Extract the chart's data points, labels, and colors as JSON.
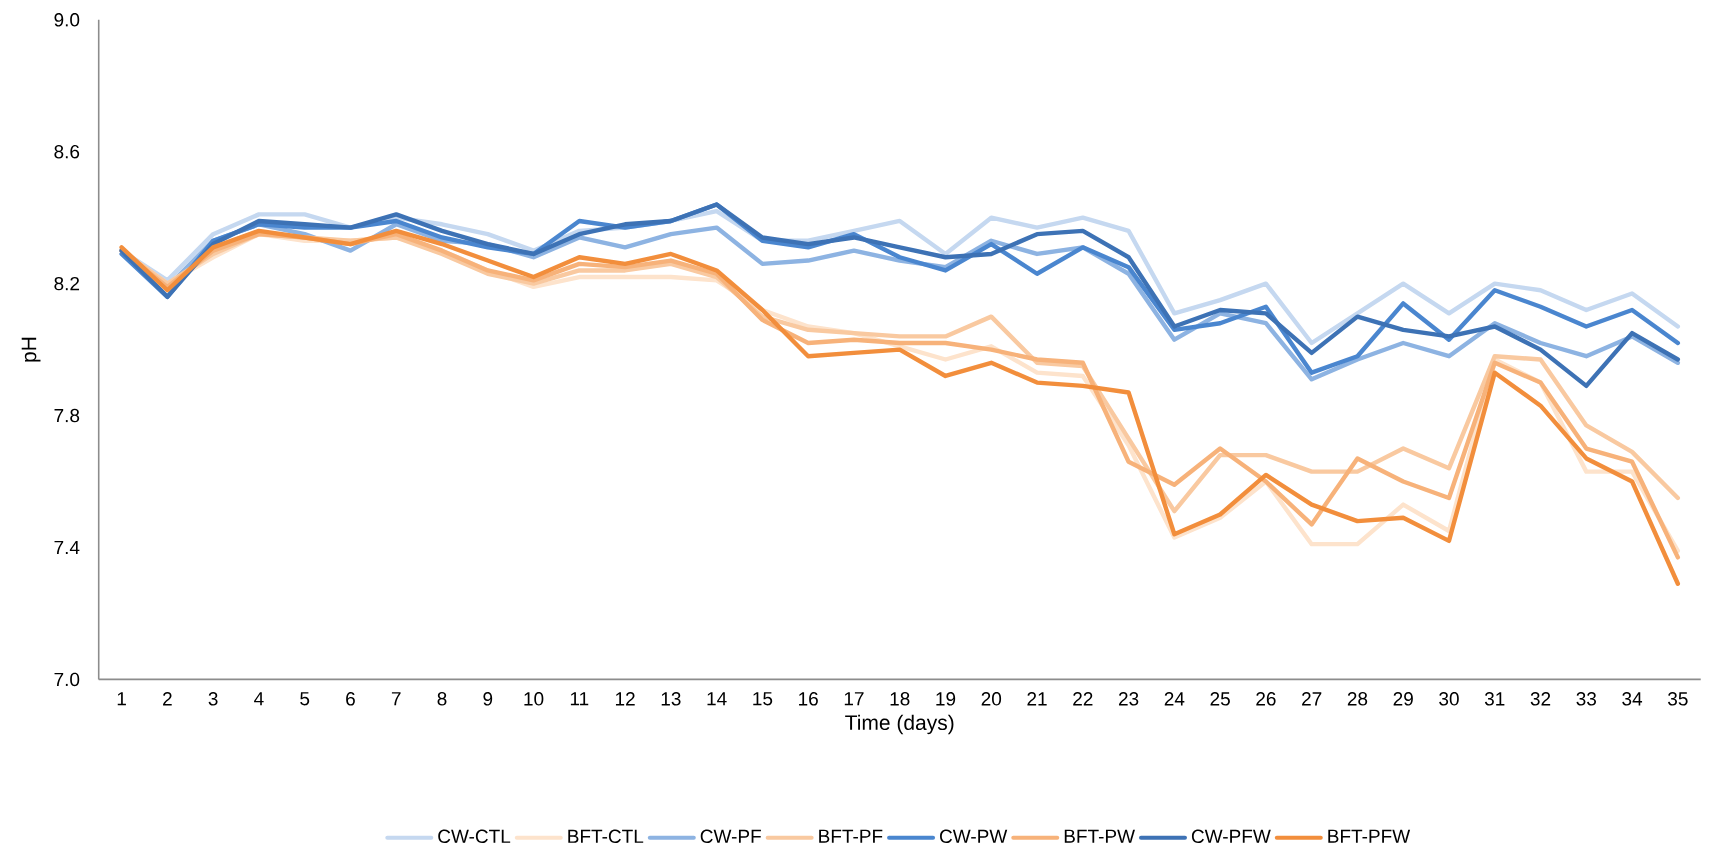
{
  "chart_data": {
    "type": "line",
    "xlabel": "Time (days)",
    "ylabel": "pH",
    "categories": [
      "1",
      "2",
      "3",
      "4",
      "5",
      "6",
      "7",
      "8",
      "9",
      "10",
      "11",
      "12",
      "13",
      "14",
      "15",
      "16",
      "17",
      "18",
      "19",
      "20",
      "21",
      "22",
      "23",
      "24",
      "25",
      "26",
      "27",
      "28",
      "29",
      "30",
      "31",
      "32",
      "33",
      "34",
      "35"
    ],
    "ylim": [
      7.0,
      9.0
    ],
    "yticks": [
      {
        "value": 7.0,
        "label": "7.0"
      },
      7.4,
      7.8,
      8.2,
      8.6,
      {
        "value": 9.0,
        "label": "9.0"
      }
    ],
    "legend": "bottom",
    "series": [
      {
        "name": "CW-CTL",
        "color": "#c5d8f0",
        "values": [
          8.3,
          8.21,
          8.35,
          8.41,
          8.41,
          8.37,
          8.4,
          8.38,
          8.35,
          8.3,
          8.36,
          8.37,
          8.39,
          8.42,
          8.33,
          8.33,
          8.36,
          8.39,
          8.29,
          8.4,
          8.37,
          8.4,
          8.36,
          8.11,
          8.15,
          8.2,
          8.02,
          8.11,
          8.2,
          8.11,
          8.2,
          8.18,
          8.12,
          8.17,
          8.07
        ]
      },
      {
        "name": "BFT-CTL",
        "color": "#fde3cc",
        "values": [
          8.3,
          8.2,
          8.28,
          8.35,
          8.33,
          8.33,
          8.34,
          8.3,
          8.24,
          8.19,
          8.22,
          8.22,
          8.22,
          8.21,
          8.12,
          8.07,
          8.05,
          8.01,
          7.97,
          8.01,
          7.93,
          7.92,
          7.71,
          7.43,
          7.49,
          7.6,
          7.41,
          7.41,
          7.53,
          7.45,
          7.97,
          7.9,
          7.63,
          7.63,
          7.39
        ]
      },
      {
        "name": "CW-PF",
        "color": "#8db3e2",
        "values": [
          8.3,
          8.19,
          8.33,
          8.38,
          8.35,
          8.3,
          8.38,
          8.33,
          8.32,
          8.28,
          8.34,
          8.31,
          8.35,
          8.37,
          8.26,
          8.27,
          8.3,
          8.27,
          8.25,
          8.33,
          8.29,
          8.31,
          8.23,
          8.03,
          8.11,
          8.08,
          7.91,
          7.97,
          8.02,
          7.98,
          8.08,
          8.02,
          7.98,
          8.04,
          7.96
        ]
      },
      {
        "name": "BFT-PF",
        "color": "#f9c9a0",
        "values": [
          8.3,
          8.2,
          8.29,
          8.35,
          8.34,
          8.33,
          8.34,
          8.29,
          8.23,
          8.2,
          8.24,
          8.24,
          8.26,
          8.22,
          8.1,
          8.06,
          8.05,
          8.04,
          8.04,
          8.1,
          7.96,
          7.95,
          7.73,
          7.51,
          7.68,
          7.68,
          7.63,
          7.63,
          7.7,
          7.64,
          7.98,
          7.97,
          7.77,
          7.69,
          7.55
        ]
      },
      {
        "name": "CW-PW",
        "color": "#4a86cf",
        "values": [
          8.29,
          8.16,
          8.33,
          8.38,
          8.37,
          8.37,
          8.39,
          8.34,
          8.31,
          8.29,
          8.39,
          8.37,
          8.39,
          8.44,
          8.33,
          8.31,
          8.35,
          8.28,
          8.24,
          8.32,
          8.23,
          8.31,
          8.25,
          8.06,
          8.08,
          8.13,
          7.93,
          7.98,
          8.14,
          8.03,
          8.18,
          8.13,
          8.07,
          8.12,
          8.02
        ]
      },
      {
        "name": "BFT-PW",
        "color": "#f7b27a",
        "values": [
          8.3,
          8.19,
          8.3,
          8.35,
          8.34,
          8.32,
          8.35,
          8.3,
          8.24,
          8.21,
          8.26,
          8.25,
          8.27,
          8.23,
          8.09,
          8.02,
          8.03,
          8.02,
          8.02,
          8.0,
          7.97,
          7.96,
          7.66,
          7.59,
          7.7,
          7.6,
          7.47,
          7.67,
          7.6,
          7.55,
          7.96,
          7.9,
          7.7,
          7.66,
          7.37
        ]
      },
      {
        "name": "CW-PFW",
        "color": "#3d72b5",
        "values": [
          8.3,
          8.16,
          8.32,
          8.39,
          8.38,
          8.37,
          8.41,
          8.36,
          8.32,
          8.29,
          8.35,
          8.38,
          8.39,
          8.44,
          8.34,
          8.32,
          8.34,
          8.31,
          8.28,
          8.29,
          8.35,
          8.36,
          8.28,
          8.07,
          8.12,
          8.11,
          7.99,
          8.1,
          8.06,
          8.04,
          8.07,
          8.0,
          7.89,
          8.05,
          7.97
        ]
      },
      {
        "name": "BFT-PFW",
        "color": "#f28e3c",
        "values": [
          8.31,
          8.18,
          8.31,
          8.36,
          8.34,
          8.32,
          8.36,
          8.32,
          8.27,
          8.22,
          8.28,
          8.26,
          8.29,
          8.24,
          8.12,
          7.98,
          7.99,
          8.0,
          7.92,
          7.96,
          7.9,
          7.89,
          7.87,
          7.44,
          7.5,
          7.62,
          7.53,
          7.48,
          7.49,
          7.42,
          7.93,
          7.83,
          7.67,
          7.6,
          7.29
        ]
      }
    ]
  }
}
